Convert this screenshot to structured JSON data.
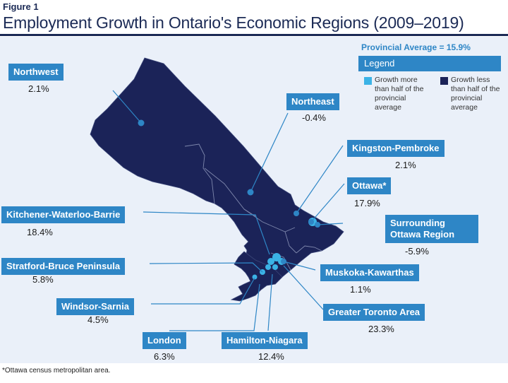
{
  "header": {
    "figure_label": "Figure 1",
    "title": "Employment Growth in Ontario's Economic Regions (2009–2019)"
  },
  "provincial_average": "Provincial Average = 15.9%",
  "legend": {
    "title": "Legend",
    "items": [
      {
        "label": "Growth more than half of the provincial average",
        "color": "#3bb3e6"
      },
      {
        "label": "Growth less than half of the provincial average",
        "color": "#1b2358"
      }
    ]
  },
  "regions": [
    {
      "name": "Northwest",
      "value": "2.1%"
    },
    {
      "name": "Northeast",
      "value": "-0.4%"
    },
    {
      "name": "Kingston-Pembroke",
      "value": "2.1%"
    },
    {
      "name": "Ottawa*",
      "value": "17.9%"
    },
    {
      "name": "Kitchener-Waterloo-Barrie",
      "value": "18.4%"
    },
    {
      "name": "Surrounding Ottawa Region",
      "value": "-5.9%"
    },
    {
      "name": "Stratford-Bruce Peninsula",
      "value": "5.8%"
    },
    {
      "name": "Muskoka-Kawarthas",
      "value": "1.1%"
    },
    {
      "name": "Windsor-Sarnia",
      "value": "4.5%"
    },
    {
      "name": "Greater Toronto Area",
      "value": "23.3%"
    },
    {
      "name": "London",
      "value": "6.3%"
    },
    {
      "name": "Hamilton-Niagara",
      "value": "12.4%"
    }
  ],
  "footnote": "*Ottawa census metropolitan area.",
  "colors": {
    "land_dark": "#1b2358",
    "land_light": "#3bb3e6",
    "accent": "#2e86c6",
    "water": "#eaf0f9"
  }
}
